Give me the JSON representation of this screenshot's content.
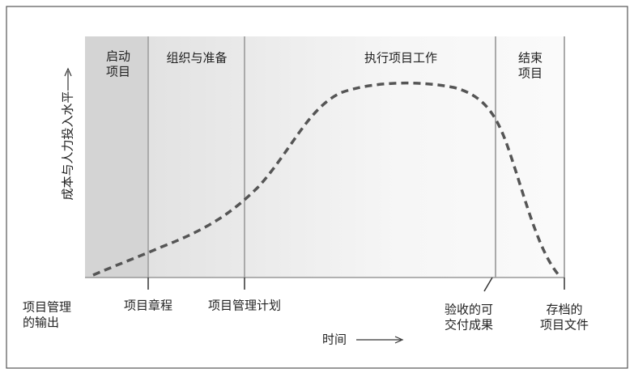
{
  "y_axis_label": "成本与人力投入水平",
  "x_axis_label": "时间",
  "phases": [
    {
      "lines": [
        "启动",
        "项目"
      ]
    },
    {
      "lines": [
        "组织与准备"
      ]
    },
    {
      "lines": [
        "执行项目工作"
      ]
    },
    {
      "lines": [
        "结束",
        "项目"
      ]
    }
  ],
  "outputs": [
    {
      "lines": [
        "项目管理",
        "的输出"
      ]
    },
    {
      "lines": [
        "项目章程"
      ]
    },
    {
      "lines": [
        "项目管理计划"
      ]
    },
    {
      "lines": [
        "验收的可",
        "交付成果"
      ]
    },
    {
      "lines": [
        "存档的",
        "项目文件"
      ]
    }
  ]
}
